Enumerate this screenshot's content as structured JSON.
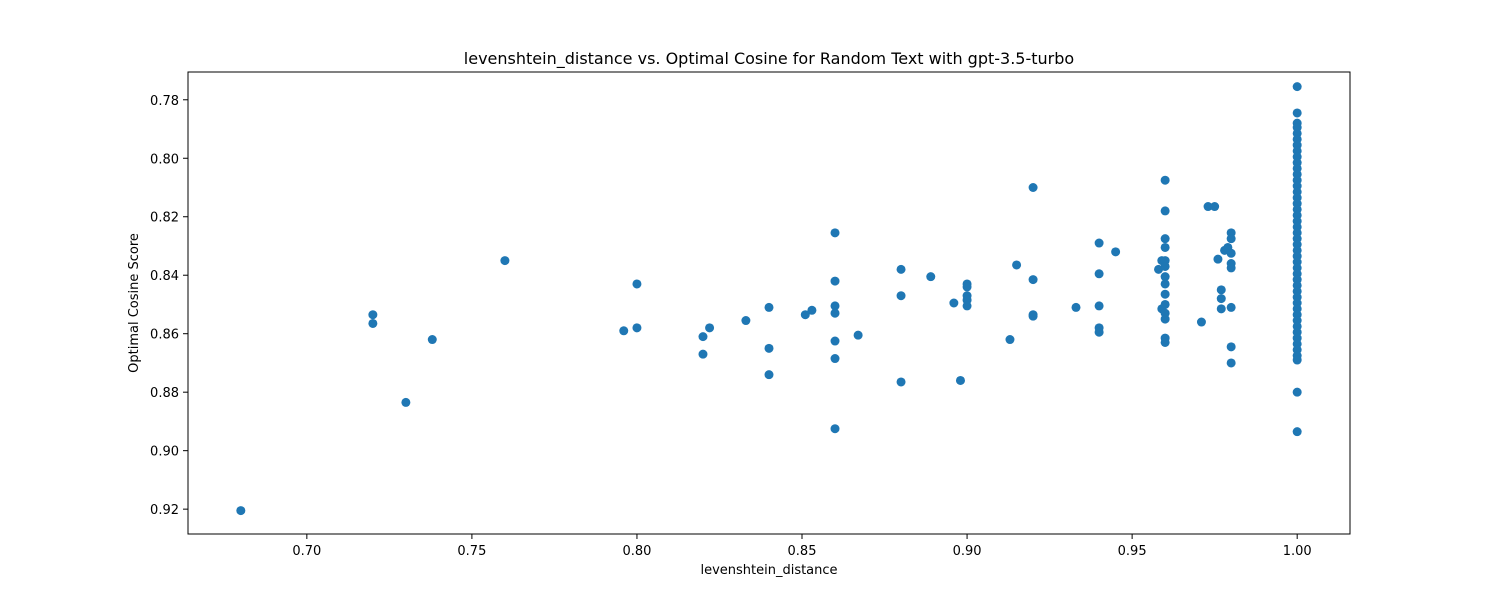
{
  "chart_data": {
    "type": "scatter",
    "title": "levenshtein_distance vs. Optimal Cosine for Random Text with gpt-3.5-turbo",
    "xlabel": "levenshtein_distance",
    "ylabel": "Optimal Cosine Score",
    "xlim": [
      0.664,
      1.016
    ],
    "ylim": [
      0.9285,
      0.7705
    ],
    "y_inverted": true,
    "grid": false,
    "x_ticks": [
      {
        "value": 0.7,
        "label": "0.70"
      },
      {
        "value": 0.75,
        "label": "0.75"
      },
      {
        "value": 0.8,
        "label": "0.80"
      },
      {
        "value": 0.85,
        "label": "0.85"
      },
      {
        "value": 0.9,
        "label": "0.90"
      },
      {
        "value": 0.95,
        "label": "0.95"
      },
      {
        "value": 1.0,
        "label": "1.00"
      }
    ],
    "y_ticks": [
      {
        "value": 0.78,
        "label": "0.78"
      },
      {
        "value": 0.8,
        "label": "0.80"
      },
      {
        "value": 0.82,
        "label": "0.82"
      },
      {
        "value": 0.84,
        "label": "0.84"
      },
      {
        "value": 0.86,
        "label": "0.86"
      },
      {
        "value": 0.88,
        "label": "0.88"
      },
      {
        "value": 0.9,
        "label": "0.90"
      },
      {
        "value": 0.92,
        "label": "0.92"
      }
    ],
    "marker_color": "#1f77b4",
    "points": [
      [
        0.68,
        0.9205
      ],
      [
        0.72,
        0.8535
      ],
      [
        0.72,
        0.8565
      ],
      [
        0.73,
        0.8835
      ],
      [
        0.738,
        0.862
      ],
      [
        0.76,
        0.835
      ],
      [
        0.796,
        0.859
      ],
      [
        0.8,
        0.843
      ],
      [
        0.8,
        0.858
      ],
      [
        0.82,
        0.861
      ],
      [
        0.82,
        0.867
      ],
      [
        0.822,
        0.858
      ],
      [
        0.833,
        0.8555
      ],
      [
        0.84,
        0.851
      ],
      [
        0.84,
        0.865
      ],
      [
        0.84,
        0.874
      ],
      [
        0.851,
        0.8535
      ],
      [
        0.853,
        0.852
      ],
      [
        0.86,
        0.8255
      ],
      [
        0.86,
        0.842
      ],
      [
        0.86,
        0.8505
      ],
      [
        0.86,
        0.853
      ],
      [
        0.86,
        0.8625
      ],
      [
        0.86,
        0.8685
      ],
      [
        0.86,
        0.8925
      ],
      [
        0.867,
        0.8605
      ],
      [
        0.88,
        0.838
      ],
      [
        0.88,
        0.847
      ],
      [
        0.88,
        0.8765
      ],
      [
        0.889,
        0.8405
      ],
      [
        0.896,
        0.8495
      ],
      [
        0.898,
        0.876
      ],
      [
        0.9,
        0.843
      ],
      [
        0.9,
        0.844
      ],
      [
        0.9,
        0.847
      ],
      [
        0.9,
        0.8485
      ],
      [
        0.9,
        0.8505
      ],
      [
        0.913,
        0.862
      ],
      [
        0.915,
        0.8365
      ],
      [
        0.92,
        0.81
      ],
      [
        0.92,
        0.8415
      ],
      [
        0.92,
        0.8535
      ],
      [
        0.92,
        0.854
      ],
      [
        0.933,
        0.851
      ],
      [
        0.94,
        0.829
      ],
      [
        0.94,
        0.8395
      ],
      [
        0.94,
        0.8505
      ],
      [
        0.94,
        0.858
      ],
      [
        0.94,
        0.8595
      ],
      [
        0.945,
        0.832
      ],
      [
        0.958,
        0.838
      ],
      [
        0.959,
        0.835
      ],
      [
        0.959,
        0.8515
      ],
      [
        0.96,
        0.8075
      ],
      [
        0.96,
        0.818
      ],
      [
        0.96,
        0.8275
      ],
      [
        0.96,
        0.8305
      ],
      [
        0.96,
        0.835
      ],
      [
        0.96,
        0.837
      ],
      [
        0.96,
        0.8405
      ],
      [
        0.96,
        0.843
      ],
      [
        0.96,
        0.8465
      ],
      [
        0.96,
        0.85
      ],
      [
        0.96,
        0.853
      ],
      [
        0.96,
        0.855
      ],
      [
        0.96,
        0.8615
      ],
      [
        0.96,
        0.863
      ],
      [
        0.971,
        0.856
      ],
      [
        0.973,
        0.8165
      ],
      [
        0.975,
        0.8165
      ],
      [
        0.976,
        0.8345
      ],
      [
        0.977,
        0.845
      ],
      [
        0.977,
        0.848
      ],
      [
        0.977,
        0.8515
      ],
      [
        0.978,
        0.8315
      ],
      [
        0.979,
        0.8305
      ],
      [
        0.98,
        0.8255
      ],
      [
        0.98,
        0.8275
      ],
      [
        0.98,
        0.8325
      ],
      [
        0.98,
        0.836
      ],
      [
        0.98,
        0.8375
      ],
      [
        0.98,
        0.851
      ],
      [
        0.98,
        0.8645
      ],
      [
        0.98,
        0.87
      ],
      [
        1.0,
        0.7755
      ],
      [
        1.0,
        0.7845
      ],
      [
        1.0,
        0.788
      ],
      [
        1.0,
        0.7895
      ],
      [
        1.0,
        0.7915
      ],
      [
        1.0,
        0.7935
      ],
      [
        1.0,
        0.7955
      ],
      [
        1.0,
        0.7975
      ],
      [
        1.0,
        0.7995
      ],
      [
        1.0,
        0.8015
      ],
      [
        1.0,
        0.8035
      ],
      [
        1.0,
        0.8055
      ],
      [
        1.0,
        0.8075
      ],
      [
        1.0,
        0.8095
      ],
      [
        1.0,
        0.8115
      ],
      [
        1.0,
        0.8135
      ],
      [
        1.0,
        0.8155
      ],
      [
        1.0,
        0.8175
      ],
      [
        1.0,
        0.8195
      ],
      [
        1.0,
        0.8215
      ],
      [
        1.0,
        0.8235
      ],
      [
        1.0,
        0.8255
      ],
      [
        1.0,
        0.8275
      ],
      [
        1.0,
        0.8295
      ],
      [
        1.0,
        0.8315
      ],
      [
        1.0,
        0.8335
      ],
      [
        1.0,
        0.8355
      ],
      [
        1.0,
        0.8375
      ],
      [
        1.0,
        0.8395
      ],
      [
        1.0,
        0.8415
      ],
      [
        1.0,
        0.8435
      ],
      [
        1.0,
        0.8455
      ],
      [
        1.0,
        0.8475
      ],
      [
        1.0,
        0.8495
      ],
      [
        1.0,
        0.8515
      ],
      [
        1.0,
        0.8535
      ],
      [
        1.0,
        0.8555
      ],
      [
        1.0,
        0.8575
      ],
      [
        1.0,
        0.8595
      ],
      [
        1.0,
        0.8615
      ],
      [
        1.0,
        0.8635
      ],
      [
        1.0,
        0.8655
      ],
      [
        1.0,
        0.8675
      ],
      [
        1.0,
        0.869
      ],
      [
        1.0,
        0.88
      ],
      [
        1.0,
        0.8935
      ]
    ]
  }
}
